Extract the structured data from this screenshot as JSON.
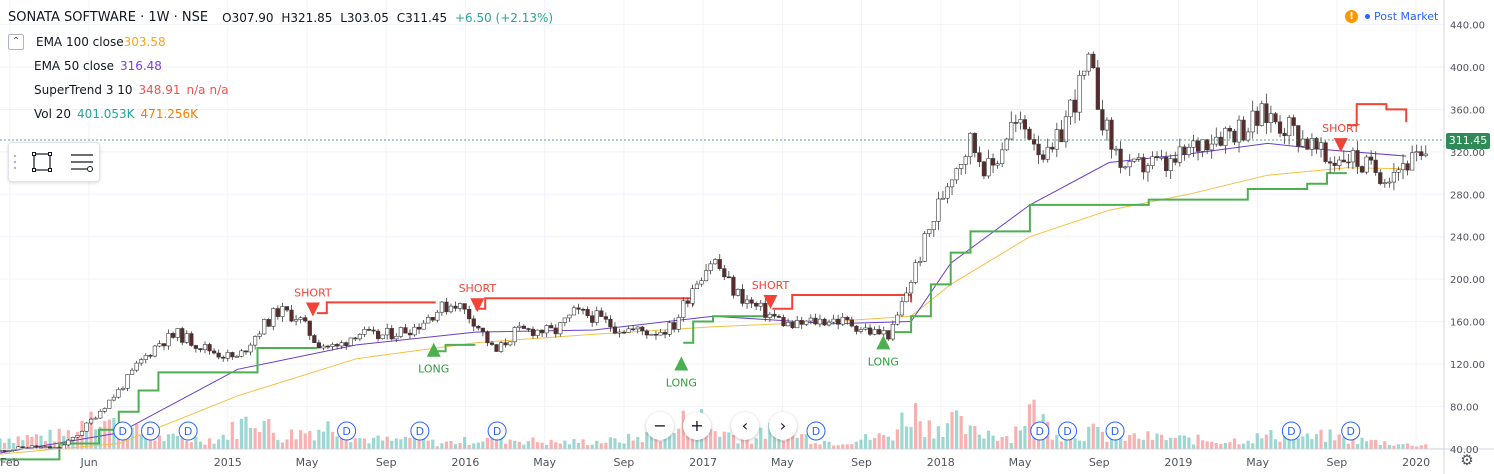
{
  "header": {
    "symbol": "SONATA SOFTWARE · 1W · NSE",
    "open": "O307.90",
    "high": "H321.85",
    "low": "L303.05",
    "close": "C311.45",
    "change": "+6.50 (+2.13%)",
    "post_market": "Post Market",
    "change_color": "#26a69a"
  },
  "indicators": [
    {
      "name": "EMA 100 close",
      "value": "303.58",
      "color": "#f5a623"
    },
    {
      "name": "EMA 50 close",
      "value": "316.48",
      "color": "#7e3fdb"
    },
    {
      "name": "SuperTrend 3 10",
      "value": "348.91",
      "extra1": "n/a",
      "extra2": "n/a",
      "color": "#ef5350"
    },
    {
      "name": "Vol 20",
      "value": "401.053K",
      "extra1": "471.256K",
      "color": "#26a69a",
      "extra_color": "#f57c00"
    }
  ],
  "collapse_label": "⌃",
  "current_price": "311.45",
  "colors": {
    "up": "#26a69a",
    "down": "#ef5350",
    "supertrend_up": "#4caf50",
    "supertrend_down": "#f44336",
    "ema100": "#f5c043",
    "ema50": "#6a3fc9",
    "grid": "#f0f3fa"
  },
  "chart_data": {
    "type": "candlestick",
    "y_axis_ticks": [
      "440.00",
      "400.00",
      "360.00",
      "320.00",
      "280.00",
      "240.00",
      "200.00",
      "160.00",
      "120.00",
      "80.00",
      "40.00"
    ],
    "ylim": [
      20,
      450
    ],
    "x_axis_ticks": [
      {
        "label": "Feb",
        "t": 0.5
      },
      {
        "label": "Jun",
        "t": 4.5
      },
      {
        "label": "2015",
        "t": 11.5
      },
      {
        "label": "May",
        "t": 15.5
      },
      {
        "label": "Sep",
        "t": 19.5
      },
      {
        "label": "2016",
        "t": 23.5
      },
      {
        "label": "May",
        "t": 27.5
      },
      {
        "label": "Sep",
        "t": 31.5
      },
      {
        "label": "2017",
        "t": 35.5
      },
      {
        "label": "May",
        "t": 39.5
      },
      {
        "label": "Sep",
        "t": 43.5
      },
      {
        "label": "2018",
        "t": 47.5
      },
      {
        "label": "May",
        "t": 51.5
      },
      {
        "label": "Sep",
        "t": 55.5
      },
      {
        "label": "2019",
        "t": 59.5
      },
      {
        "label": "May",
        "t": 63.5
      },
      {
        "label": "Sep",
        "t": 67.5
      },
      {
        "label": "2020",
        "t": 71.5
      }
    ],
    "x_range_months": [
      0,
      72
    ],
    "price_path": [
      [
        0,
        38
      ],
      [
        1.5,
        42
      ],
      [
        3,
        40
      ],
      [
        4,
        55
      ],
      [
        5,
        75
      ],
      [
        6,
        95
      ],
      [
        7,
        120
      ],
      [
        8,
        140
      ],
      [
        9,
        148
      ],
      [
        10,
        138
      ],
      [
        11,
        130
      ],
      [
        12,
        125
      ],
      [
        13,
        150
      ],
      [
        14,
        170
      ],
      [
        15,
        165
      ],
      [
        16,
        140
      ],
      [
        17,
        135
      ],
      [
        18,
        150
      ],
      [
        19,
        145
      ],
      [
        20,
        150
      ],
      [
        21,
        155
      ],
      [
        22,
        170
      ],
      [
        23,
        178
      ],
      [
        24,
        160
      ],
      [
        25,
        130
      ],
      [
        26,
        150
      ],
      [
        27,
        152
      ],
      [
        28,
        150
      ],
      [
        29,
        168
      ],
      [
        30,
        165
      ],
      [
        31,
        155
      ],
      [
        32,
        152
      ],
      [
        33,
        150
      ],
      [
        34,
        155
      ],
      [
        35,
        195
      ],
      [
        36,
        220
      ],
      [
        37,
        190
      ],
      [
        38,
        175
      ],
      [
        39,
        165
      ],
      [
        40,
        155
      ],
      [
        41,
        160
      ],
      [
        42,
        162
      ],
      [
        43,
        158
      ],
      [
        44,
        150
      ],
      [
        45,
        148
      ],
      [
        46,
        200
      ],
      [
        47,
        250
      ],
      [
        48,
        300
      ],
      [
        49,
        330
      ],
      [
        50,
        300
      ],
      [
        51,
        345
      ],
      [
        52,
        340
      ],
      [
        53,
        310
      ],
      [
        54,
        360
      ],
      [
        55,
        400
      ],
      [
        56,
        330
      ],
      [
        57,
        300
      ],
      [
        58,
        310
      ],
      [
        59,
        305
      ],
      [
        60,
        320
      ],
      [
        61,
        335
      ],
      [
        62,
        340
      ],
      [
        63,
        345
      ],
      [
        64,
        355
      ],
      [
        65,
        345
      ],
      [
        66,
        330
      ],
      [
        67,
        310
      ],
      [
        68,
        318
      ],
      [
        69,
        305
      ],
      [
        70,
        300
      ],
      [
        71,
        311
      ]
    ],
    "ema100": [
      [
        0,
        35
      ],
      [
        6,
        45
      ],
      [
        12,
        90
      ],
      [
        18,
        125
      ],
      [
        24,
        140
      ],
      [
        30,
        148
      ],
      [
        36,
        155
      ],
      [
        42,
        160
      ],
      [
        46,
        165
      ],
      [
        48,
        195
      ],
      [
        52,
        240
      ],
      [
        56,
        265
      ],
      [
        60,
        280
      ],
      [
        64,
        298
      ],
      [
        68,
        305
      ],
      [
        71,
        304
      ]
    ],
    "ema50": [
      [
        0,
        36
      ],
      [
        6,
        55
      ],
      [
        12,
        115
      ],
      [
        18,
        138
      ],
      [
        24,
        150
      ],
      [
        30,
        152
      ],
      [
        36,
        165
      ],
      [
        42,
        158
      ],
      [
        46,
        160
      ],
      [
        48,
        215
      ],
      [
        52,
        270
      ],
      [
        56,
        310
      ],
      [
        60,
        318
      ],
      [
        64,
        328
      ],
      [
        67,
        322
      ],
      [
        71,
        316
      ]
    ],
    "supertrend": [
      {
        "dir": "up",
        "points": [
          [
            0,
            30
          ],
          [
            3,
            45
          ],
          [
            5,
            58
          ],
          [
            6,
            75
          ],
          [
            7,
            95
          ],
          [
            8,
            112
          ],
          [
            12,
            112
          ],
          [
            13,
            135
          ],
          [
            16,
            135
          ]
        ]
      },
      {
        "dir": "down",
        "points": [
          [
            16,
            168
          ],
          [
            16.5,
            178
          ],
          [
            22,
            178
          ]
        ]
      },
      {
        "dir": "up",
        "points": [
          [
            22,
            132
          ],
          [
            22.5,
            138
          ],
          [
            24,
            138
          ]
        ]
      },
      {
        "dir": "down",
        "points": [
          [
            24,
            172
          ],
          [
            24.5,
            182
          ],
          [
            34,
            182
          ],
          [
            35,
            175
          ]
        ]
      },
      {
        "dir": "up",
        "points": [
          [
            34.5,
            140
          ],
          [
            35,
            160
          ],
          [
            36,
            165
          ],
          [
            39,
            165
          ]
        ]
      },
      {
        "dir": "down",
        "points": [
          [
            39,
            172
          ],
          [
            40,
            185
          ],
          [
            45,
            185
          ],
          [
            46,
            178
          ]
        ]
      },
      {
        "dir": "up",
        "points": [
          [
            45,
            150
          ],
          [
            46,
            165
          ],
          [
            47,
            195
          ],
          [
            48,
            225
          ],
          [
            49,
            245
          ],
          [
            51,
            245
          ],
          [
            52,
            270
          ],
          [
            57,
            270
          ],
          [
            58,
            275
          ],
          [
            62,
            275
          ],
          [
            63,
            285
          ],
          [
            66,
            290
          ],
          [
            67,
            300
          ],
          [
            68,
            300
          ]
        ]
      },
      {
        "dir": "down",
        "points": [
          [
            68,
            345
          ],
          [
            68.5,
            365
          ],
          [
            69,
            365
          ],
          [
            70,
            360
          ],
          [
            71,
            348
          ]
        ]
      }
    ],
    "signals": [
      {
        "type": "SHORT",
        "t": 15.8,
        "price": 178
      },
      {
        "type": "LONG",
        "t": 21.9,
        "price": 140
      },
      {
        "type": "SHORT",
        "t": 24.1,
        "price": 182
      },
      {
        "type": "LONG",
        "t": 34.4,
        "price": 127
      },
      {
        "type": "SHORT",
        "t": 38.9,
        "price": 185
      },
      {
        "type": "LONG",
        "t": 44.6,
        "price": 147
      },
      {
        "type": "SHORT",
        "t": 67.7,
        "price": 333
      }
    ],
    "dividend_markers": [
      6.2,
      7.6,
      9.5,
      17.5,
      21.2,
      25.1,
      41.2,
      52.5,
      53.9,
      56.3,
      65.2,
      68.2
    ],
    "dividend_label": "D",
    "volume": [
      [
        0,
        20
      ],
      [
        3,
        25
      ],
      [
        4,
        35
      ],
      [
        4.5,
        90
      ],
      [
        5,
        60
      ],
      [
        6,
        40
      ],
      [
        7,
        30
      ],
      [
        8,
        20
      ],
      [
        11,
        18
      ],
      [
        13,
        65
      ],
      [
        14,
        22
      ],
      [
        17,
        45
      ],
      [
        18,
        20
      ],
      [
        20,
        15
      ],
      [
        21,
        25
      ],
      [
        22,
        10
      ],
      [
        25,
        20
      ],
      [
        28,
        12
      ],
      [
        31,
        15
      ],
      [
        34,
        30
      ],
      [
        35,
        70
      ],
      [
        36,
        35
      ],
      [
        38,
        18
      ],
      [
        39,
        38
      ],
      [
        42,
        12
      ],
      [
        45,
        25
      ],
      [
        46,
        75
      ],
      [
        47,
        40
      ],
      [
        48,
        55
      ],
      [
        49,
        30
      ],
      [
        50,
        32
      ],
      [
        51,
        22
      ],
      [
        52,
        74
      ],
      [
        53,
        40
      ],
      [
        54,
        25
      ],
      [
        55,
        34
      ],
      [
        56,
        22
      ],
      [
        58,
        22
      ],
      [
        60,
        18
      ],
      [
        62,
        15
      ],
      [
        65,
        28
      ],
      [
        66,
        20
      ],
      [
        67,
        25
      ],
      [
        68,
        18
      ],
      [
        69,
        15
      ],
      [
        70,
        12
      ],
      [
        71,
        8
      ]
    ],
    "volume_max": 120
  }
}
